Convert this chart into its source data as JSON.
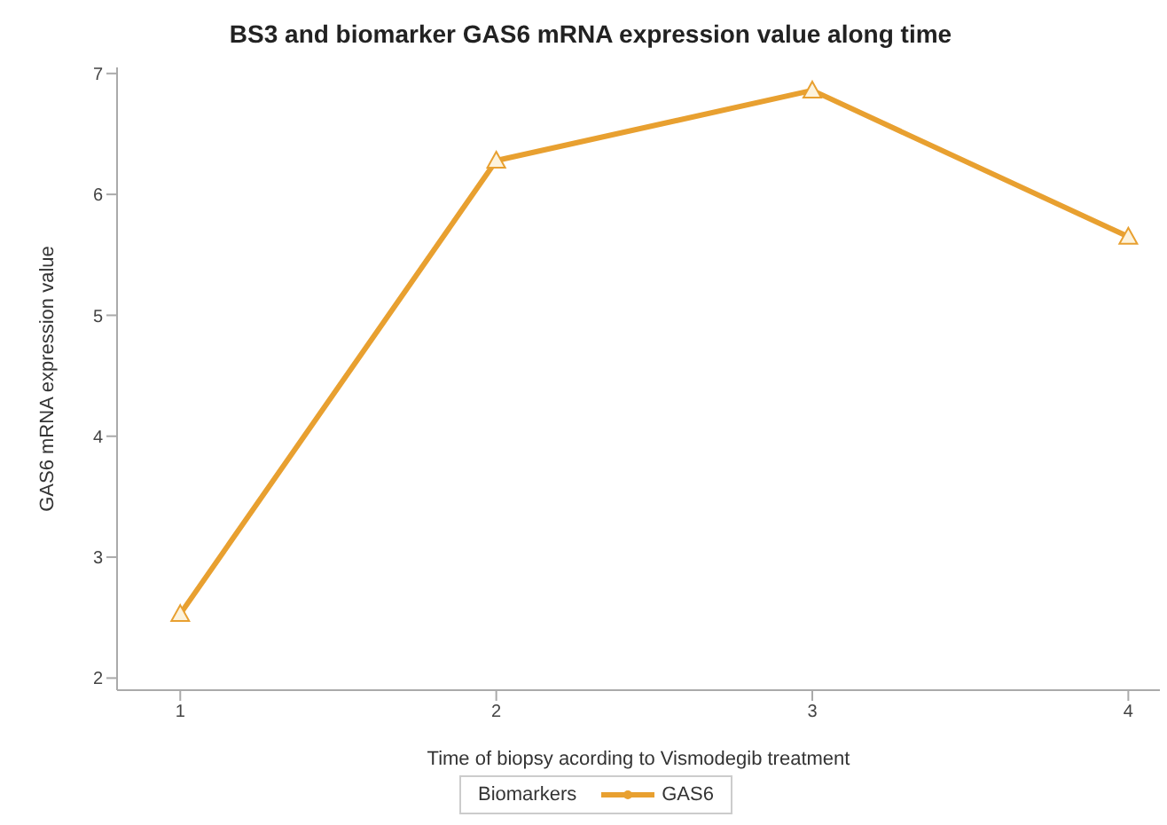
{
  "chart_data": {
    "type": "line",
    "title": "BS3 and biomarker GAS6 mRNA expression value along time",
    "xlabel": "Time of biopsy acording to Vismodegib treatment",
    "ylabel": "GAS6 mRNA expression value",
    "legend_title": "Biomarkers",
    "x": [
      1,
      2,
      3,
      4
    ],
    "series": [
      {
        "name": "GAS6",
        "color": "#e8a030",
        "values": [
          2.53,
          6.28,
          6.86,
          5.65
        ]
      }
    ],
    "xlim": [
      0.8,
      4.1
    ],
    "xticks": [
      1,
      2,
      3,
      4
    ],
    "ylim": [
      1.9,
      7.05
    ],
    "yticks": [
      2,
      3,
      4,
      5,
      6,
      7
    ],
    "grid": false,
    "legend": "bottom",
    "marker": "triangle",
    "line_style": "solid"
  }
}
